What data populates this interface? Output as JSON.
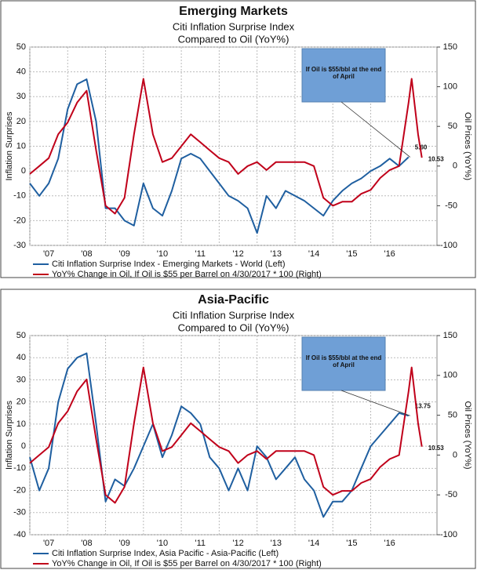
{
  "chart_data": [
    {
      "type": "line",
      "title": "Emerging Markets",
      "subtitle": "Citi Inflation Surprise Index",
      "subtitle2": "Compared to Oil (YoY%)",
      "ylabel": "Inflation Surprises",
      "y2label": "Oil Prices (YoY%)",
      "annotation": "If Oil is $55/bbl at the end of April",
      "xlim": [
        2007,
        2017.75
      ],
      "xticks": [
        {
          "value": 2007,
          "label": "'07"
        },
        {
          "value": 2008,
          "label": "'08"
        },
        {
          "value": 2009,
          "label": "'09"
        },
        {
          "value": 2010,
          "label": "'10"
        },
        {
          "value": 2011,
          "label": "'11"
        },
        {
          "value": 2012,
          "label": "'12"
        },
        {
          "value": 2013,
          "label": "'13"
        },
        {
          "value": 2014,
          "label": "'14"
        },
        {
          "value": 2015,
          "label": "'15"
        },
        {
          "value": 2016,
          "label": "'16"
        }
      ],
      "ylim": [
        -30,
        50
      ],
      "yticks": [
        -30,
        -20,
        -10,
        0,
        10,
        20,
        30,
        40,
        50
      ],
      "y2lim": [
        -100,
        150
      ],
      "y2ticks": [
        -100,
        -50,
        0,
        50,
        100,
        150
      ],
      "grid": true,
      "series": [
        {
          "name": "Citi Inflation Surprise Index - Emerging Markets - World  (Left)",
          "color": "#1f5fa0",
          "x": [
            2007,
            2007.25,
            2007.5,
            2007.75,
            2008,
            2008.25,
            2008.5,
            2008.75,
            2009,
            2009.25,
            2009.5,
            2009.75,
            2010,
            2010.25,
            2010.5,
            2010.75,
            2011,
            2011.25,
            2011.5,
            2011.75,
            2012,
            2012.25,
            2012.5,
            2012.75,
            2013,
            2013.25,
            2013.5,
            2013.75,
            2014,
            2014.25,
            2014.5,
            2014.75,
            2015,
            2015.25,
            2015.5,
            2015.75,
            2016,
            2016.25,
            2016.5,
            2016.75,
            2017
          ],
          "values": [
            -5,
            -10,
            -5,
            5,
            25,
            35,
            37,
            20,
            -15,
            -15,
            -20,
            -22,
            -5,
            -15,
            -18,
            -8,
            5,
            7,
            5,
            0,
            -5,
            -10,
            -12,
            -15,
            -25,
            -10,
            -15,
            -8,
            -10,
            -12,
            -15,
            -18,
            -12,
            -8,
            -5,
            -3,
            0,
            2,
            5,
            2,
            5.6
          ],
          "end_label": "5.60"
        },
        {
          "name": "YoY% Change in Oil, If Oil is $55 per Barrel on 4/30/2017 * 100  (Right)",
          "color": "#c0001a",
          "axis": "y2",
          "x": [
            2007,
            2007.25,
            2007.5,
            2007.75,
            2008,
            2008.25,
            2008.5,
            2008.75,
            2009,
            2009.25,
            2009.5,
            2009.75,
            2010,
            2010.25,
            2010.5,
            2010.75,
            2011,
            2011.25,
            2011.5,
            2011.75,
            2012,
            2012.25,
            2012.5,
            2012.75,
            2013,
            2013.25,
            2013.5,
            2013.75,
            2014,
            2014.25,
            2014.5,
            2014.75,
            2015,
            2015.25,
            2015.5,
            2015.75,
            2016,
            2016.25,
            2016.5,
            2016.75,
            2017,
            2017.08,
            2017.25,
            2017.35
          ],
          "values": [
            -10,
            0,
            10,
            40,
            55,
            80,
            95,
            20,
            -50,
            -60,
            -40,
            40,
            110,
            40,
            5,
            10,
            25,
            40,
            30,
            20,
            10,
            5,
            -10,
            0,
            5,
            -5,
            5,
            5,
            5,
            5,
            0,
            -40,
            -50,
            -45,
            -45,
            -35,
            -30,
            -15,
            -5,
            0,
            80,
            110,
            40,
            10.53
          ],
          "end_label": "10.53"
        }
      ]
    },
    {
      "type": "line",
      "title": "Asia-Pacific",
      "subtitle": "Citi Inflation Surprise Index",
      "subtitle2": "Compared to Oil (YoY%)",
      "ylabel": "Inflation Surprises",
      "y2label": "Oil Prices (YoY%)",
      "annotation": "If Oil is $55/bbl at the end of April",
      "xlim": [
        2007,
        2017.75
      ],
      "xticks": [
        {
          "value": 2007,
          "label": "'07"
        },
        {
          "value": 2008,
          "label": "'08"
        },
        {
          "value": 2009,
          "label": "'09"
        },
        {
          "value": 2010,
          "label": "'10"
        },
        {
          "value": 2011,
          "label": "'11"
        },
        {
          "value": 2012,
          "label": "'12"
        },
        {
          "value": 2013,
          "label": "'13"
        },
        {
          "value": 2014,
          "label": "'14"
        },
        {
          "value": 2015,
          "label": "'15"
        },
        {
          "value": 2016,
          "label": "'16"
        }
      ],
      "ylim": [
        -40,
        50
      ],
      "yticks": [
        -40,
        -30,
        -20,
        -10,
        0,
        10,
        20,
        30,
        40,
        50
      ],
      "y2lim": [
        -100,
        150
      ],
      "y2ticks": [
        -100,
        -50,
        0,
        50,
        100,
        150
      ],
      "grid": true,
      "series": [
        {
          "name": "Citi Inflation Surprise Index, Asia Pacific - Asia-Pacific  (Left)",
          "color": "#1f5fa0",
          "x": [
            2007,
            2007.25,
            2007.5,
            2007.75,
            2008,
            2008.25,
            2008.5,
            2008.75,
            2009,
            2009.25,
            2009.5,
            2009.75,
            2010,
            2010.25,
            2010.5,
            2010.75,
            2011,
            2011.25,
            2011.5,
            2011.75,
            2012,
            2012.25,
            2012.5,
            2012.75,
            2013,
            2013.25,
            2013.5,
            2013.75,
            2014,
            2014.25,
            2014.5,
            2014.75,
            2015,
            2015.25,
            2015.5,
            2015.75,
            2016,
            2016.25,
            2016.5,
            2016.75,
            2017
          ],
          "values": [
            -5,
            -20,
            -10,
            20,
            35,
            40,
            42,
            10,
            -25,
            -15,
            -18,
            -10,
            0,
            10,
            -5,
            5,
            18,
            15,
            10,
            -5,
            -10,
            -20,
            -10,
            -20,
            0,
            -5,
            -15,
            -10,
            -5,
            -15,
            -20,
            -32,
            -25,
            -25,
            -20,
            -10,
            0,
            5,
            10,
            15,
            13.75
          ],
          "end_label": "13.75"
        },
        {
          "name": "YoY% Change in Oil, If Oil is $55 per Barrel on 4/30/2017 * 100  (Right)",
          "color": "#c0001a",
          "axis": "y2",
          "x": [
            2007,
            2007.25,
            2007.5,
            2007.75,
            2008,
            2008.25,
            2008.5,
            2008.75,
            2009,
            2009.25,
            2009.5,
            2009.75,
            2010,
            2010.25,
            2010.5,
            2010.75,
            2011,
            2011.25,
            2011.5,
            2011.75,
            2012,
            2012.25,
            2012.5,
            2012.75,
            2013,
            2013.25,
            2013.5,
            2013.75,
            2014,
            2014.25,
            2014.5,
            2014.75,
            2015,
            2015.25,
            2015.5,
            2015.75,
            2016,
            2016.25,
            2016.5,
            2016.75,
            2017,
            2017.08,
            2017.25,
            2017.35
          ],
          "values": [
            -10,
            0,
            10,
            40,
            55,
            80,
            95,
            20,
            -50,
            -60,
            -40,
            40,
            110,
            40,
            5,
            10,
            25,
            40,
            30,
            20,
            10,
            5,
            -10,
            0,
            5,
            -5,
            5,
            5,
            5,
            5,
            0,
            -40,
            -50,
            -45,
            -45,
            -35,
            -30,
            -15,
            -5,
            0,
            80,
            110,
            40,
            10.53
          ],
          "end_label": "10.53"
        }
      ]
    }
  ]
}
